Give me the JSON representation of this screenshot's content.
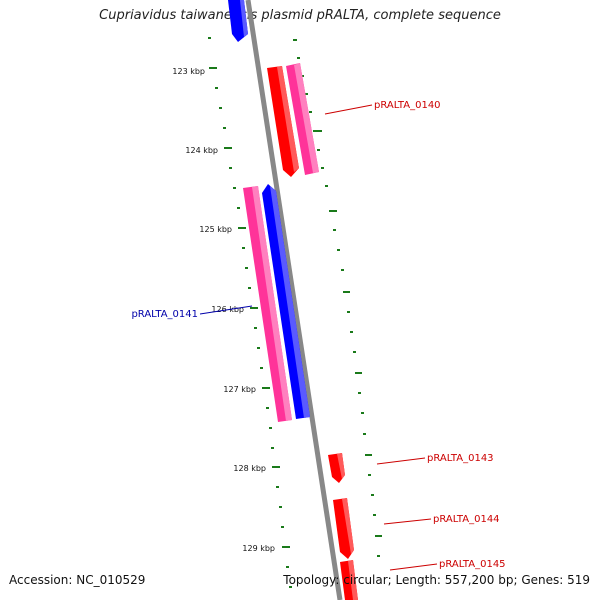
{
  "title": "Cupriavidus taiwanensis plasmid pRALTA, complete sequence",
  "footer": {
    "accession": "Accession: NC_010529",
    "topology": "Topology: circular; Length: 557,200 bp; Genes: 519"
  },
  "ticks": [
    "123 kbp",
    "124 kbp",
    "125 kbp",
    "126 kbp",
    "127 kbp",
    "128 kbp",
    "129 kbp"
  ],
  "gene_labels": [
    {
      "text": "pRALTA_0140",
      "color": "#cc0000"
    },
    {
      "text": "pRALTA_0141",
      "color": "#0000aa"
    },
    {
      "text": "pRALTA_0143",
      "color": "#cc0000"
    },
    {
      "text": "pRALTA_0144",
      "color": "#cc0000"
    },
    {
      "text": "pRALTA_0145",
      "color": "#cc0000"
    }
  ],
  "colors": {
    "backbone": "#888888",
    "tick": "#1a7a1a",
    "forward_cds": "#ff0000",
    "reverse_cds": "#0000ff",
    "gene": "#ff3399"
  }
}
